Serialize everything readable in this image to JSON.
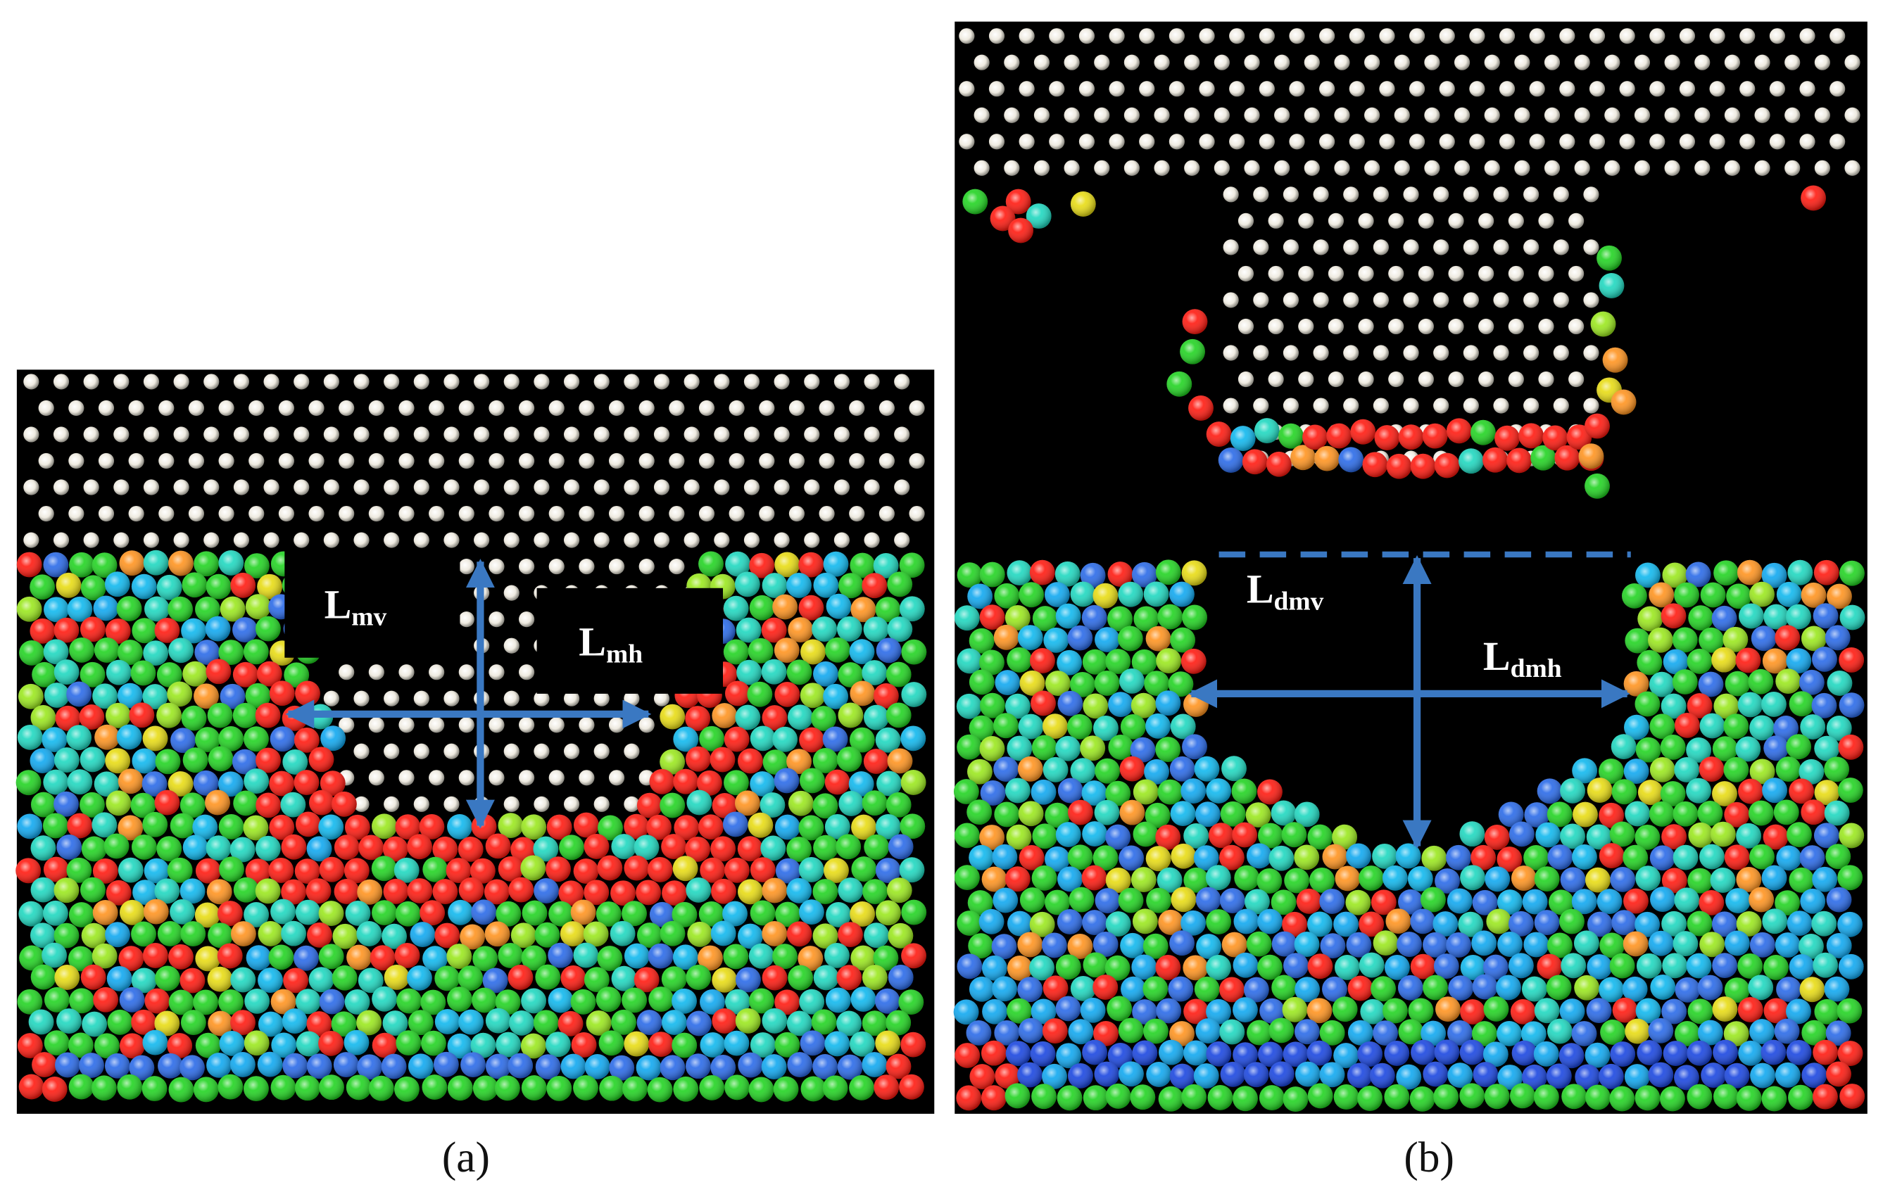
{
  "panels": [
    {
      "label": "(a)",
      "annotations": [
        {
          "text": "L",
          "sub": "mv"
        },
        {
          "text": "L",
          "sub": "mh"
        }
      ]
    },
    {
      "label": "(b)",
      "annotations": [
        {
          "text": "L",
          "sub": "dmv"
        },
        {
          "text": "L",
          "sub": "dmh"
        }
      ]
    }
  ]
}
